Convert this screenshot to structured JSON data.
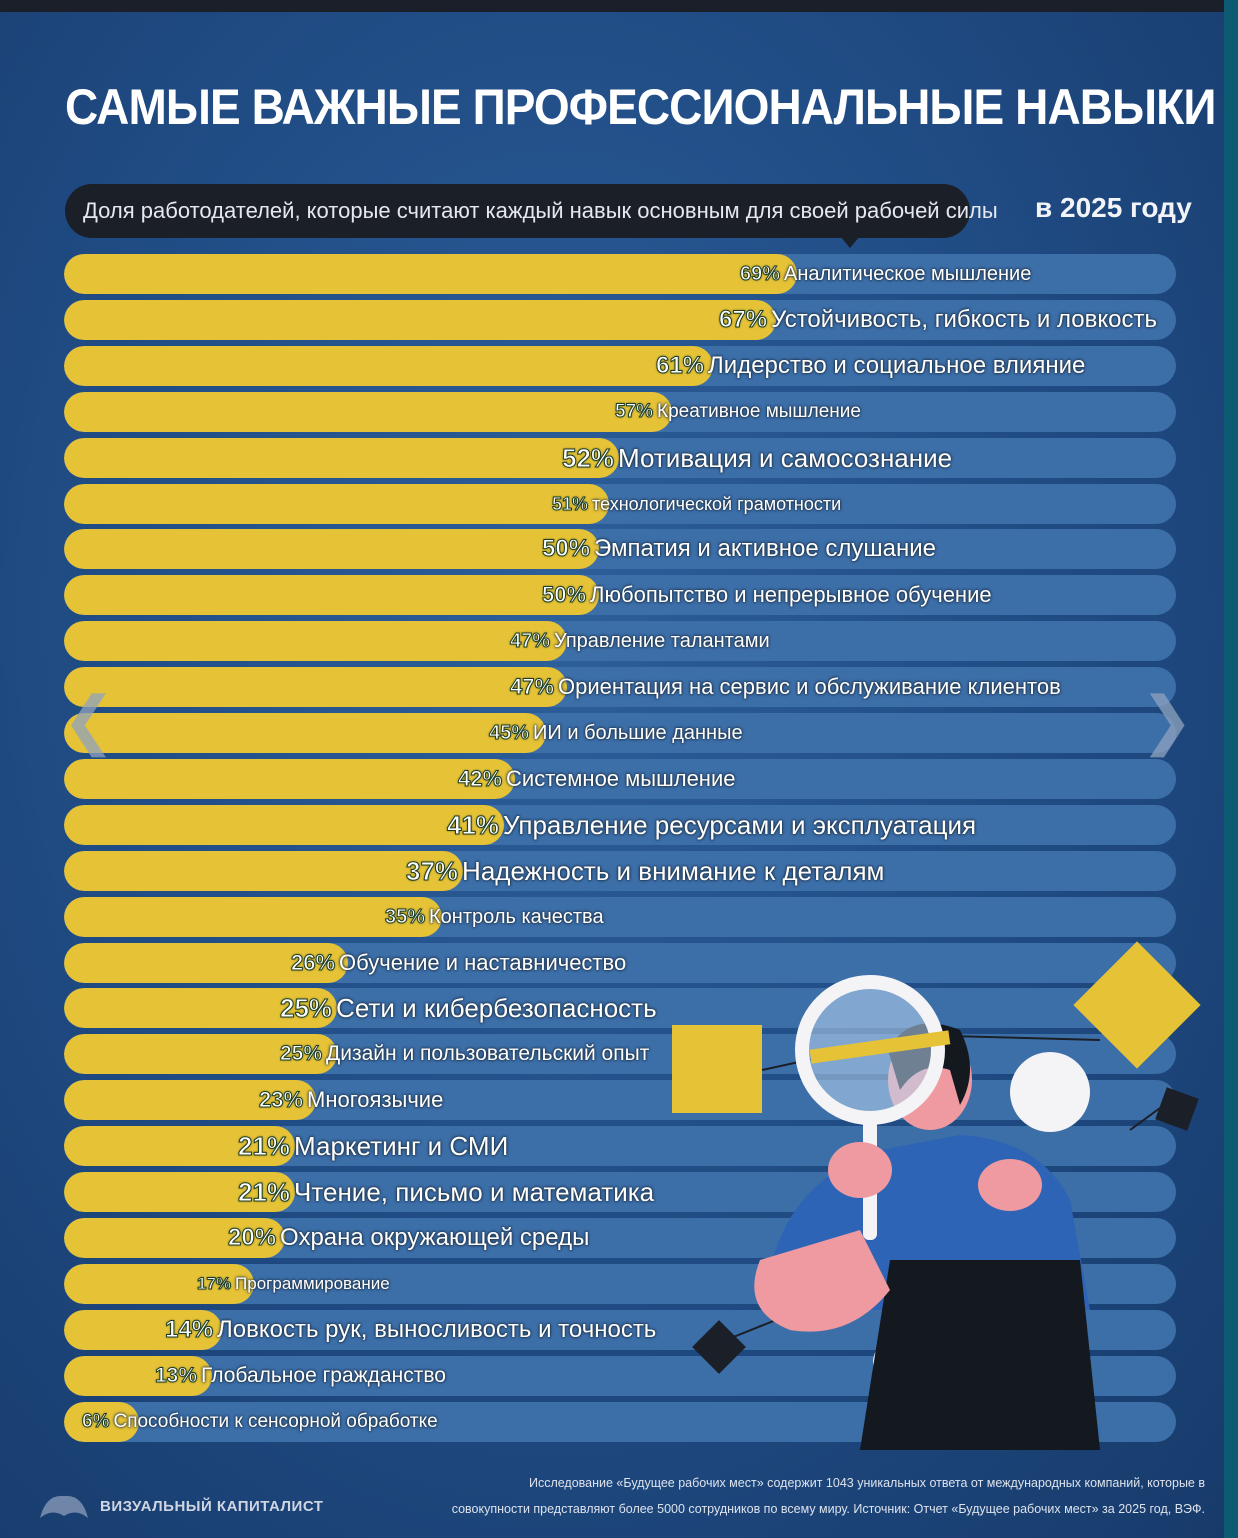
{
  "title": "САМЫЕ ВАЖНЫЕ ПРОФЕССИОНАЛЬНЫЕ НАВЫКИ",
  "subtitle": "Доля работодателей, которые считают каждый навык основным для своей рабочей силы",
  "year_label": "в 2025 году",
  "colors": {
    "bar_fill": "#e5c236",
    "track": "#3c6ea8",
    "background": "#1f4a82"
  },
  "navigation": {
    "prev_icon": "chevron-left-icon",
    "next_icon": "chevron-right-icon",
    "prev_glyph": "❮",
    "next_glyph": "❯"
  },
  "chart_data": {
    "type": "bar",
    "orientation": "horizontal",
    "xlim": [
      0,
      100
    ],
    "unit": "%",
    "grid": false,
    "categories": [
      "Аналитическое мышление",
      "Устойчивость, гибкость и ловкость",
      "Лидерство и социальное влияние",
      "Креативное мышление",
      "Мотивация и самосознание",
      "технологической грамотности",
      "Эмпатия и активное слушание",
      "Любопытство и непрерывное обучение",
      "Управление талантами",
      "Ориентация на сервис и обслуживание клиентов",
      "ИИ и большие данные",
      "Системное мышление",
      "Управление ресурсами и эксплуатация",
      "Надежность и внимание к деталям",
      "Контроль качества",
      "Обучение и наставничество",
      "Сети и кибербезопасность",
      "Дизайн и пользовательский опыт",
      "Многоязычие",
      "Маркетинг и СМИ",
      "Чтение, письмо и математика",
      "Охрана окружающей среды",
      "Программирование",
      "Ловкость рук, выносливость и точность",
      "Глобальное гражданство",
      "Способности к сенсорной обработке"
    ],
    "values": [
      69,
      67,
      61,
      57,
      52,
      51,
      50,
      50,
      47,
      47,
      45,
      42,
      41,
      37,
      35,
      26,
      25,
      25,
      23,
      21,
      21,
      20,
      17,
      14,
      13,
      6
    ],
    "value_labels": [
      "69%",
      "67%",
      "61%",
      "57%",
      "52%",
      "51%",
      "50%",
      "50%",
      "47%",
      "47%",
      "45%",
      "42%",
      "41%",
      "37%",
      "35%",
      "26%",
      "25%",
      "25%",
      "23%",
      "21%",
      "21%",
      "20%",
      "17%",
      "14%",
      "13%",
      "6%"
    ]
  },
  "footer": {
    "brand": "ВИЗУАЛЬНЫЙ КАПИТАЛИСТ",
    "note_line1": "Исследование «Будущее рабочих мест» содержит 1043 уникальных ответа от международных компаний, которые в",
    "note_line2": "совокупности представляют более 5000 сотрудников по всему миру. Источник: Отчет «Будущее рабочих мест» за 2025 год, ВЭФ."
  }
}
